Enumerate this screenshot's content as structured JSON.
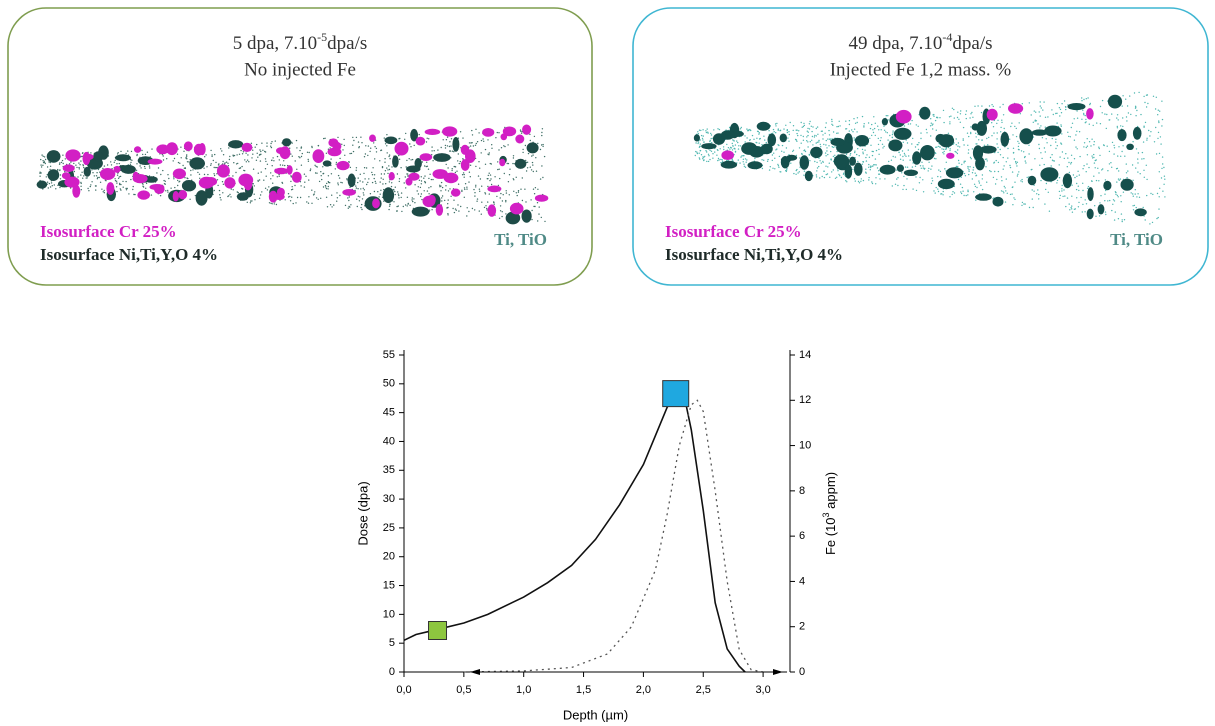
{
  "panels": [
    {
      "title": [
        "5 dpa, 7.10",
        "-5",
        "dpa/s"
      ],
      "subtitle": "No injected Fe",
      "legend": [
        "Isosurface Cr 25%",
        "Isosurface Ni,Ti,Y,O 4%"
      ],
      "note": "Ti, TiO",
      "border": "#7f9d4f"
    },
    {
      "title": [
        "49 dpa, 7.10",
        "-4",
        "dpa/s"
      ],
      "subtitle": "Injected Fe 1,2 mass. %",
      "legend": [
        "Isosurface Cr 25%",
        "Isosurface Ni,Ti,Y,O 4%"
      ],
      "note": "Ti, TiO",
      "border": "#3fb6d2"
    }
  ],
  "chart_data": {
    "type": "line",
    "xlabel": "Depth (µm)",
    "ylabel": "Dose (dpa)",
    "y2label": [
      "Fe (10",
      "3",
      " appm)"
    ],
    "xlim": [
      0,
      3.2
    ],
    "xticks": [
      {
        "value": 0,
        "label": "0,0"
      },
      {
        "value": 0.5,
        "label": "0,5"
      },
      {
        "value": 1,
        "label": "1,0"
      },
      {
        "value": 1.5,
        "label": "1,5"
      },
      {
        "value": 2,
        "label": "2,0"
      },
      {
        "value": 2.5,
        "label": "2,5"
      },
      {
        "value": 3,
        "label": "3,0"
      }
    ],
    "ylim": [
      0,
      55
    ],
    "yticks": [
      0,
      5,
      10,
      15,
      20,
      25,
      30,
      35,
      40,
      45,
      50,
      55
    ],
    "y2lim": [
      0,
      14
    ],
    "y2ticks": [
      0,
      2,
      4,
      6,
      8,
      10,
      12,
      14
    ],
    "series": [
      {
        "color": "#111111",
        "dash": "none",
        "x": [
          0,
          0.1,
          0.2,
          0.3,
          0.5,
          0.7,
          0.9,
          1.0,
          1.2,
          1.4,
          1.6,
          1.8,
          2.0,
          2.1,
          2.2,
          2.3,
          2.35,
          2.4,
          2.5,
          2.6,
          2.7,
          2.8,
          2.85
        ],
        "values": [
          5.5,
          6.5,
          7,
          7.5,
          8.5,
          10,
          12,
          13,
          15.5,
          18.5,
          23,
          29,
          36,
          41,
          46,
          48,
          47,
          42,
          28,
          12,
          4,
          1,
          0
        ]
      },
      {
        "color": "#555555",
        "dash": "2 4",
        "axis": "y2",
        "x": [
          0.5,
          1.0,
          1.4,
          1.7,
          1.9,
          2.1,
          2.2,
          2.3,
          2.4,
          2.45,
          2.5,
          2.6,
          2.7,
          2.8,
          2.9,
          3.0
        ],
        "values": [
          0,
          0.05,
          0.2,
          0.8,
          2,
          4.5,
          7,
          10,
          11.8,
          12,
          11.5,
          8,
          4,
          1,
          0.1,
          0
        ]
      }
    ],
    "markers": [
      {
        "x": 0.28,
        "y": 7.2,
        "color": "#8dc63f"
      },
      {
        "x": 2.27,
        "y": 48.3,
        "color": "#1fa8e0"
      }
    ]
  }
}
